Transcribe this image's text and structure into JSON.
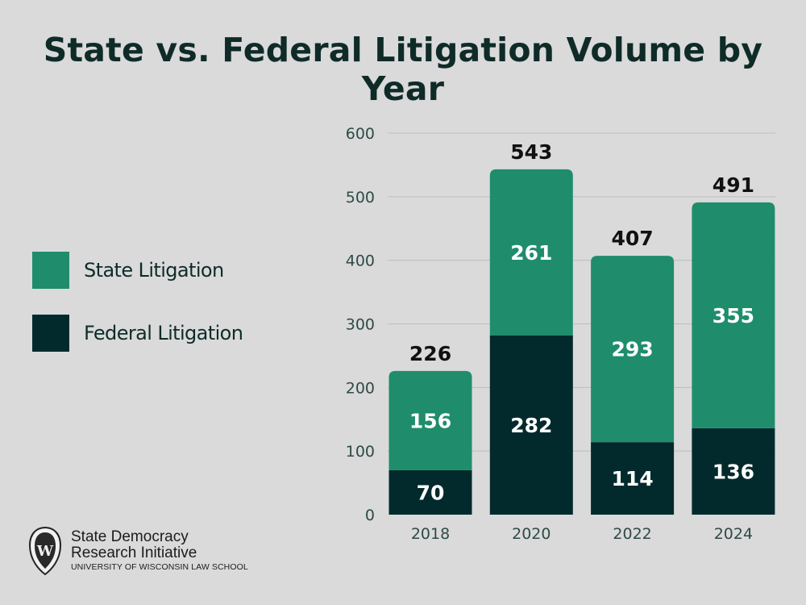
{
  "title": "State vs. Federal Litigation Volume by Year",
  "legend": [
    {
      "label": "State Litigation",
      "color": "#1f8d6b"
    },
    {
      "label": "Federal Litigation",
      "color": "#022a2d"
    }
  ],
  "chart_data": {
    "type": "bar",
    "stacked": true,
    "title": "State vs. Federal Litigation Volume by Year",
    "categories": [
      "2018",
      "2020",
      "2022",
      "2024"
    ],
    "series": [
      {
        "name": "Federal Litigation",
        "values": [
          70,
          282,
          114,
          136
        ],
        "color": "#022a2d"
      },
      {
        "name": "State Litigation",
        "values": [
          156,
          261,
          293,
          355
        ],
        "color": "#1f8d6b"
      }
    ],
    "totals": [
      226,
      543,
      407,
      491
    ],
    "ylim": [
      0,
      600
    ],
    "yticks": [
      0,
      100,
      200,
      300,
      400,
      500,
      600
    ],
    "grid": true,
    "legend_position": "left",
    "xlabel": "",
    "ylabel": ""
  },
  "logo": {
    "line1": "State Democracy",
    "line2": "Research Initiative",
    "line3": "UNIVERSITY OF WISCONSIN LAW SCHOOL",
    "badge_letter": "W"
  }
}
